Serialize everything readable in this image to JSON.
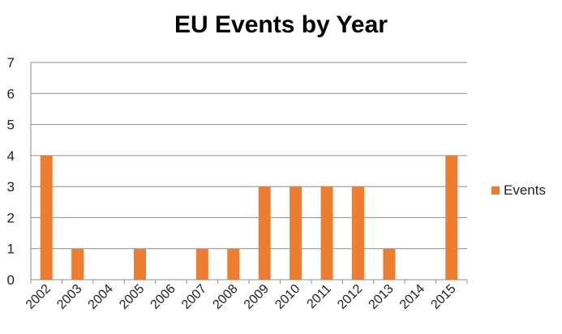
{
  "chart_data": {
    "type": "bar",
    "title": "EU Events by Year",
    "categories": [
      "2002",
      "2003",
      "2004",
      "2005",
      "2006",
      "2007",
      "2008",
      "2009",
      "2010",
      "2011",
      "2012",
      "2013",
      "2014",
      "2015"
    ],
    "series": [
      {
        "name": "Events",
        "values": [
          4,
          1,
          0,
          1,
          0,
          1,
          1,
          3,
          3,
          3,
          3,
          1,
          0,
          4
        ],
        "color": "#ED7D31"
      }
    ],
    "xlabel": "",
    "ylabel": "",
    "ylim": [
      0,
      7
    ],
    "yticks": [
      0,
      1,
      2,
      3,
      4,
      5,
      6,
      7
    ],
    "grid": true,
    "legend_position": "right"
  }
}
